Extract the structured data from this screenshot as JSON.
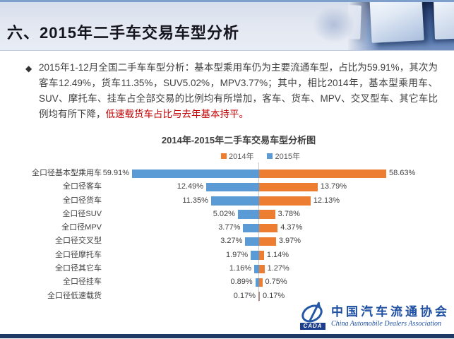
{
  "header": {
    "title": "六、2015年二手车交易车型分析"
  },
  "intro": {
    "bullet": "◆",
    "text_main": "2015年1-12月全国二手车车型分析：基本型乘用车仍为主要流通车型，占比为59.91%，其次为客车12.49%，货车11.35%，SUV5.02%，MPV3.77%；其中，相比2014年，基本型乘用车、SUV、摩托车、挂车占全部交易的比例均有所增加，客车、货车、MPV、交叉型车、其它车比例均有所下降，",
    "text_highlight": "低速载货车占比与去年基本持平。"
  },
  "chart_data": {
    "type": "bar",
    "orientation": "horizontal-diverging",
    "title": "2014年-2015年二手车交易车型分析图",
    "legend_position": "top-center",
    "grid": false,
    "axis_max_percent": 30,
    "categories": [
      "全口径基本型乘用车",
      "全口径客车",
      "全口径货车",
      "全口径SUV",
      "全口径MPV",
      "全口径交叉型",
      "全口径摩托车",
      "全口径其它车",
      "全口径挂车",
      "全口径低速载货"
    ],
    "series": [
      {
        "name": "2015年",
        "side": "left",
        "color": "#5B9BD5",
        "values": [
          59.91,
          12.49,
          11.35,
          5.02,
          3.77,
          3.27,
          1.97,
          1.16,
          0.89,
          0.17
        ]
      },
      {
        "name": "2014年",
        "side": "right",
        "color": "#ED7D31",
        "values": [
          58.63,
          13.79,
          12.13,
          3.78,
          4.37,
          3.97,
          1.14,
          1.27,
          0.75,
          0.17
        ]
      }
    ],
    "legend": [
      {
        "name": "2014年",
        "color": "#ED7D31"
      },
      {
        "name": "2015年",
        "color": "#5B9BD5"
      }
    ],
    "value_label_format": "0.00%"
  },
  "footer": {
    "logo_abbr": "CADA",
    "logo_cn": "中国汽车流通协会",
    "logo_en": "China Automobile Dealers Association"
  },
  "colors": {
    "highlight_red": "#C00000",
    "bar_blue": "#5B9BD5",
    "bar_orange": "#ED7D31",
    "bottom_bar_navy": "#1F3864"
  }
}
